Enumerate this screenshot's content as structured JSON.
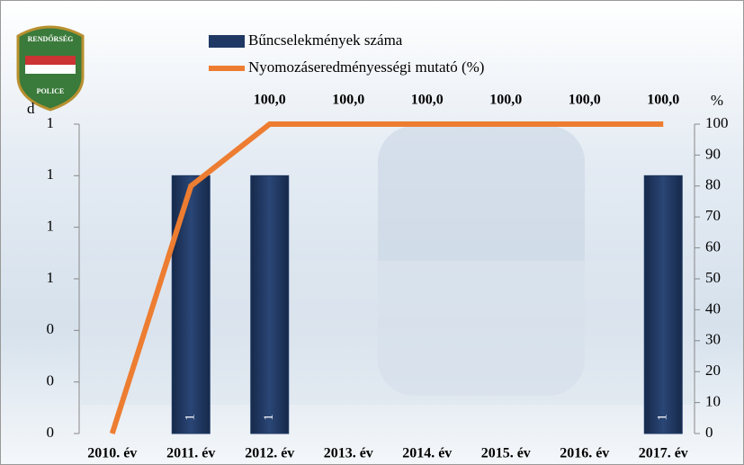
{
  "chart_data": {
    "type": "bar-line",
    "logo": {
      "top": "RENDŐRSÉG",
      "bottom": "POLICE"
    },
    "y_label": "d",
    "y2_label": "%",
    "categories": [
      "2010. év",
      "2011. év",
      "2012. év",
      "2013. év",
      "2014. év",
      "2015. év",
      "2016. év",
      "2017. év"
    ],
    "series": [
      {
        "name": "Bűncselekmények száma",
        "type": "bar",
        "color": "#1f3864",
        "axis": "y",
        "values": [
          0,
          1,
          1,
          0,
          0,
          0,
          0,
          1
        ]
      },
      {
        "name": "Nyomozáseredményességi mutató (%)",
        "type": "line",
        "color": "#ed7d31",
        "axis": "y2",
        "values": [
          0,
          80,
          100,
          100,
          100,
          100,
          100,
          100
        ],
        "value_labels": [
          null,
          null,
          "100,0",
          "100,0",
          "100,0",
          "100,0",
          "100,0",
          "100,0"
        ]
      }
    ],
    "ylim": [
      0,
      1.2
    ],
    "yticks": [
      0,
      {
        "value": 0.2,
        "label": "0"
      },
      {
        "value": 0.4,
        "label": "0"
      },
      {
        "value": 0.6,
        "label": "1"
      },
      {
        "value": 0.8,
        "label": "1"
      },
      1,
      {
        "value": 1.2,
        "label": "1"
      }
    ],
    "y2lim": [
      0,
      100
    ],
    "y2ticks": [
      0,
      10,
      20,
      30,
      40,
      50,
      60,
      70,
      80,
      90,
      100
    ]
  }
}
